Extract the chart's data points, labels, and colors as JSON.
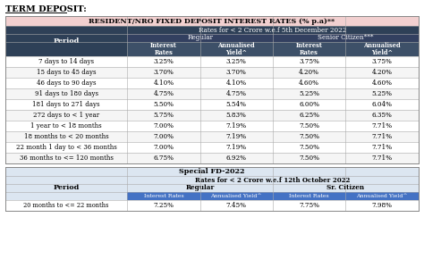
{
  "title": "TERM DEPOSIT:",
  "main_table_title": "RESIDENT/NRO FIXED DEPOSIT INTEREST RATES (% p.a)**",
  "main_subtitle": "Rates for < 2 Crore w.e.f 5th December 2022",
  "col_regular": "Regular",
  "col_senior": "Senior Citizen***",
  "col_headers": [
    "Interest\nRates",
    "Annualised\nYield^",
    "Interest\nRates",
    "Annualised\nYield^"
  ],
  "period_label": "Period",
  "main_rows": [
    [
      "7 days to 14 days",
      "3.25%",
      "3.25%",
      "3.75%",
      "3.75%"
    ],
    [
      "15 days to 45 days",
      "3.70%",
      "3.70%",
      "4.20%",
      "4.20%"
    ],
    [
      "46 days to 90 days",
      "4.10%",
      "4.10%",
      "4.60%",
      "4.60%"
    ],
    [
      "91 days to 180 days",
      "4.75%",
      "4.75%",
      "5.25%",
      "5.25%"
    ],
    [
      "181 days to 271 days",
      "5.50%",
      "5.54%",
      "6.00%",
      "6.04%"
    ],
    [
      "272 days to < 1 year",
      "5.75%",
      "5.83%",
      "6.25%",
      "6.35%"
    ],
    [
      "1 year to < 18 months",
      "7.00%",
      "7.19%",
      "7.50%",
      "7.71%"
    ],
    [
      "18 months to < 20 months",
      "7.00%",
      "7.19%",
      "7.50%",
      "7.71%"
    ],
    [
      "22 month 1 day to < 36 months",
      "7.00%",
      "7.19%",
      "7.50%",
      "7.71%"
    ],
    [
      "36 months to <= 120 months",
      "6.75%",
      "6.92%",
      "7.50%",
      "7.71%"
    ]
  ],
  "special_table_title": "Special FD-2022",
  "special_subtitle": "Rates for < 2 Crore w.e.f 12th October 2022",
  "special_col_regular": "Regular",
  "special_col_senior": "Sr. Citizen",
  "special_col_headers": [
    "Interest Rates",
    "Annualised Yield^",
    "Interest Rates",
    "Annualised Yield^"
  ],
  "special_rows": [
    [
      "20 months to <= 22 months",
      "7.25%",
      "7.45%",
      "7.75%",
      "7.98%"
    ]
  ],
  "color_main_title_bg": "#f2d0d0",
  "color_navy": "#2e4057",
  "color_navy2": "#334060",
  "color_col_header_bg": "#3d5068",
  "color_row_white": "#ffffff",
  "color_row_light": "#f5f5f5",
  "color_special_light_bg": "#dce6f1",
  "color_special_header_bg": "#4472c4",
  "color_special_header_text": "#ffffff",
  "color_border": "#aaaaaa",
  "color_outer_border": "#888888"
}
